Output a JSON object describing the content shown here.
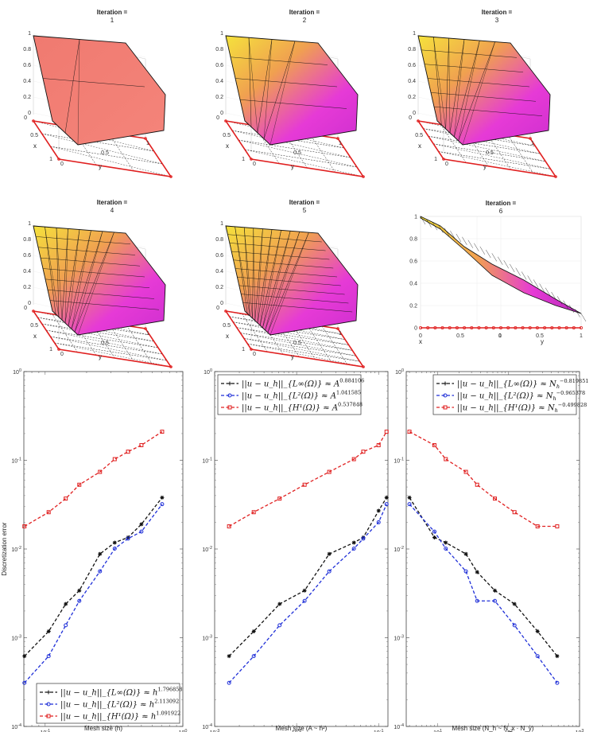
{
  "iterations": [
    {
      "title": "Iteration =",
      "n": "1",
      "tone": "coral"
    },
    {
      "title": "Iteration =",
      "n": "2",
      "tone": "mix"
    },
    {
      "title": "Iteration =",
      "n": "3",
      "tone": "mix"
    },
    {
      "title": "Iteration =",
      "n": "4",
      "tone": "mix"
    },
    {
      "title": "Iteration =",
      "n": "5",
      "tone": "mix"
    },
    {
      "title": "Iteration =",
      "n": "6",
      "tone": "side"
    }
  ],
  "surface_axes": {
    "z_ticks": [
      "0",
      "0.2",
      "0.4",
      "0.6",
      "0.8",
      "1"
    ],
    "x_ticks": [
      "0",
      "0.5",
      "1"
    ],
    "y_ticks": [
      "0",
      "0.5",
      "1"
    ],
    "x_label": "x",
    "y_label": "y"
  },
  "colors": {
    "linf": "#111111",
    "l2": "#1f2fd8",
    "h1": "#e02020",
    "surface_yellow": "#f5e23c",
    "surface_orange": "#f0a050",
    "surface_magenta": "#e63ad6",
    "surface_coral": "#f07a70",
    "boundary": "#e02020"
  },
  "chart_data": [
    {
      "type": "line",
      "x_scale": "log",
      "y_scale": "log",
      "xlabel": "Mesh size (h)",
      "ylabel": "Discretization error",
      "xlim": [
        0.07,
        1
      ],
      "ylim": [
        0.0001,
        1
      ],
      "x_ticks": [
        "10^-1",
        "10^0"
      ],
      "y_ticks": [
        "10^-4",
        "10^-3",
        "10^-2",
        "10^-1",
        "10^0"
      ],
      "legend_position": "bottom-right",
      "series": [
        {
          "name": "||u − u_h||_{L∞(Ω)} ≈ h^{1.796858}",
          "legend_main": "||u − u_h||_{L∞(Ω)} ≈ h",
          "legend_exp": "1.796858",
          "color_key": "linf",
          "marker": "star",
          "x": [
            0.0707,
            0.106,
            0.141,
            0.177,
            0.25,
            0.32,
            0.4,
            0.5,
            0.707
          ],
          "y": [
            0.00062,
            0.00118,
            0.0024,
            0.0034,
            0.0088,
            0.0118,
            0.0135,
            0.019,
            0.038
          ]
        },
        {
          "name": "||u − u_h||_{L2(Ω)} ≈ h^{2.113092}",
          "legend_main": "||u − u_h||_{L²(Ω)} ≈ h",
          "legend_exp": "2.113092",
          "color_key": "l2",
          "marker": "circle",
          "x": [
            0.0707,
            0.106,
            0.141,
            0.177,
            0.25,
            0.32,
            0.4,
            0.5,
            0.707
          ],
          "y": [
            0.00031,
            0.00062,
            0.00138,
            0.0026,
            0.0056,
            0.0101,
            0.0131,
            0.0157,
            0.032
          ]
        },
        {
          "name": "||u − u_h||_{H1(Ω)} ≈ h^{1.091922}",
          "legend_main": "||u − u_h||_{H¹(Ω)} ≈ h",
          "legend_exp": "1.091922",
          "color_key": "h1",
          "marker": "square",
          "x": [
            0.0707,
            0.106,
            0.141,
            0.177,
            0.25,
            0.32,
            0.4,
            0.5,
            0.707
          ],
          "y": [
            0.018,
            0.026,
            0.037,
            0.053,
            0.074,
            0.103,
            0.125,
            0.148,
            0.21
          ]
        }
      ]
    },
    {
      "type": "line",
      "x_scale": "log",
      "y_scale": "log",
      "xlabel": "Mesh size (A ~ h²)",
      "ylabel": "",
      "xlim": [
        0.001,
        0.13
      ],
      "ylim": [
        0.0001,
        1
      ],
      "x_ticks": [
        "10^-3",
        "10^-2",
        "10^-1"
      ],
      "y_ticks": [
        "10^-4",
        "10^-3",
        "10^-2",
        "10^-1",
        "10^0"
      ],
      "legend_position": "top-left",
      "series": [
        {
          "name": "||u − u_h||_{L∞(Ω)} ≈ A^{0.884106}",
          "legend_main": "||u − u_h||_{L∞(Ω)} ≈ A",
          "legend_exp": "0.884106",
          "color_key": "linf",
          "marker": "star",
          "x": [
            0.0015,
            0.003,
            0.0062,
            0.0125,
            0.025,
            0.05,
            0.065,
            0.1,
            0.125
          ],
          "y": [
            0.00062,
            0.00118,
            0.0024,
            0.0034,
            0.0088,
            0.0118,
            0.0135,
            0.027,
            0.038
          ]
        },
        {
          "name": "||u − u_h||_{L2(Ω)} ≈ A^{1.041585}",
          "legend_main": "||u − u_h||_{L²(Ω)} ≈ A",
          "legend_exp": "1.041585",
          "color_key": "l2",
          "marker": "circle",
          "x": [
            0.0015,
            0.003,
            0.0062,
            0.0125,
            0.025,
            0.05,
            0.065,
            0.1,
            0.125
          ],
          "y": [
            0.00031,
            0.00062,
            0.00138,
            0.0026,
            0.0056,
            0.0101,
            0.0131,
            0.02,
            0.032
          ]
        },
        {
          "name": "||u − u_h||_{H1(Ω)} ≈ A^{0.537848}",
          "legend_main": "||u − u_h||_{H¹(Ω)} ≈ A",
          "legend_exp": "0.537848",
          "color_key": "h1",
          "marker": "square",
          "x": [
            0.0015,
            0.003,
            0.0062,
            0.0125,
            0.025,
            0.05,
            0.065,
            0.1,
            0.125
          ],
          "y": [
            0.018,
            0.026,
            0.037,
            0.053,
            0.074,
            0.103,
            0.125,
            0.148,
            0.21
          ]
        }
      ]
    },
    {
      "type": "line",
      "x_scale": "log",
      "y_scale": "log",
      "xlabel": "Mesh size (N_h ~ N_x · N_y)",
      "ylabel": "",
      "xlim": [
        3.6,
        1000
      ],
      "ylim": [
        0.0001,
        1
      ],
      "x_ticks": [
        "10^1",
        "10^2",
        "10^3"
      ],
      "y_ticks": [
        "10^-4",
        "10^-3",
        "10^-2",
        "10^-1",
        "10^0"
      ],
      "legend_position": "top-right",
      "series": [
        {
          "name": "||u − u_h||_{L∞(Ω)} ≈ N_h^{-0.819851}",
          "legend_main": "||u − u_h||_{L∞(Ω)} ≈ N",
          "legend_sub": "h",
          "legend_exp": "−0.819851",
          "color_key": "linf",
          "marker": "star",
          "x": [
            4,
            9,
            13,
            25,
            36,
            64,
            121,
            256,
            484
          ],
          "y": [
            0.038,
            0.0135,
            0.0118,
            0.0088,
            0.0055,
            0.0034,
            0.0024,
            0.00118,
            0.00062
          ]
        },
        {
          "name": "||u − u_h||_{L2(Ω)} ≈ N_h^{-0.965378}",
          "legend_main": "||u − u_h||_{L²(Ω)} ≈ N",
          "legend_sub": "h",
          "legend_exp": "−0.965378",
          "color_key": "l2",
          "marker": "circle",
          "x": [
            4,
            9,
            13,
            25,
            36,
            64,
            121,
            256,
            484
          ],
          "y": [
            0.032,
            0.0157,
            0.0101,
            0.0056,
            0.0026,
            0.0026,
            0.00138,
            0.00062,
            0.00031
          ]
        },
        {
          "name": "||u − u_h||_{H1(Ω)} ≈ N_h^{-0.499828}",
          "legend_main": "||u − u_h||_{H¹(Ω)} ≈ N",
          "legend_sub": "h",
          "legend_exp": "−0.499828",
          "color_key": "h1",
          "marker": "square",
          "x": [
            4,
            9,
            13,
            25,
            36,
            64,
            121,
            256,
            484
          ],
          "y": [
            0.21,
            0.148,
            0.103,
            0.074,
            0.053,
            0.037,
            0.026,
            0.018,
            0.018
          ]
        }
      ]
    }
  ]
}
